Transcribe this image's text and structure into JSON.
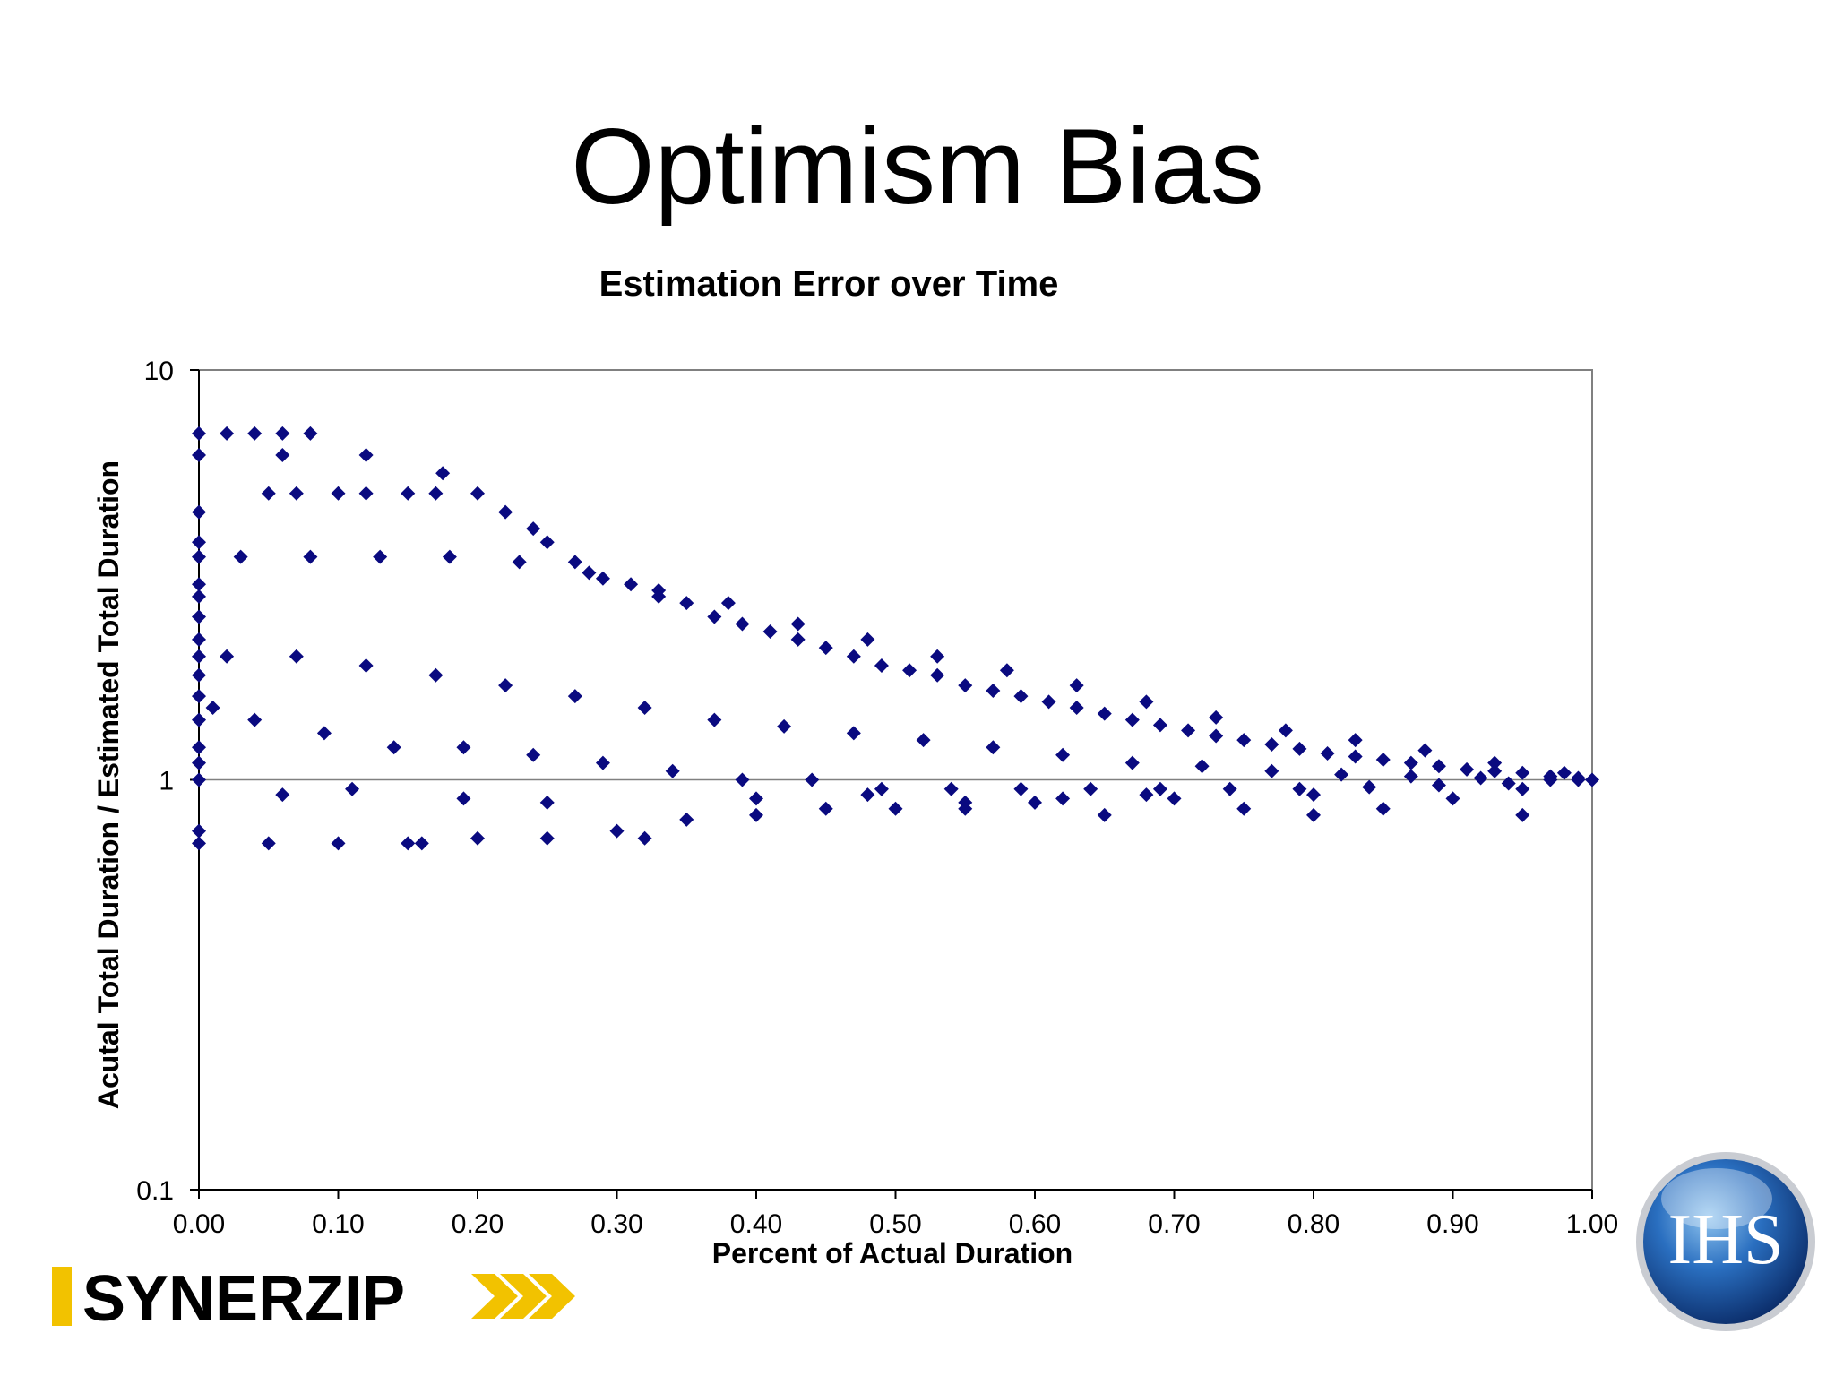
{
  "slide": {
    "title": "Optimism Bias"
  },
  "chart_data": {
    "type": "scatter",
    "title": "Estimation Error over Time",
    "xlabel": "Percent of Actual Duration",
    "ylabel": "Acutal Total Duration / Estimated Total Duration",
    "xlim": [
      0,
      1
    ],
    "ylim": [
      0.1,
      10
    ],
    "yscale": "log",
    "x_ticks": [
      "0.00",
      "0.10",
      "0.20",
      "0.30",
      "0.40",
      "0.50",
      "0.60",
      "0.70",
      "0.80",
      "0.90",
      "1.00"
    ],
    "y_ticks": [
      "0.1",
      "1",
      "10"
    ],
    "grid": "horizontal at y=1",
    "legend": "none",
    "marker": "diamond",
    "color": "#0A0A80",
    "series": [
      {
        "x": [
          0.0,
          0.0,
          0.0,
          0.0,
          0.0,
          0.0,
          0.0,
          0.0,
          0.0,
          0.0,
          0.0,
          0.0,
          0.0,
          0.0,
          0.0,
          0.0,
          0.0,
          0.0,
          0.02,
          0.04,
          0.06,
          0.08,
          0.06,
          0.12,
          0.05,
          0.07,
          0.1,
          0.12,
          0.15,
          0.17,
          0.175,
          0.2,
          0.22,
          0.24,
          0.25,
          0.27,
          0.29,
          0.31,
          0.33,
          0.35,
          0.37,
          0.39,
          0.41,
          0.43,
          0.45,
          0.47,
          0.49,
          0.51,
          0.53,
          0.55,
          0.57,
          0.59,
          0.61,
          0.63,
          0.65,
          0.67,
          0.69,
          0.71,
          0.73,
          0.75,
          0.77,
          0.79,
          0.81,
          0.83,
          0.85,
          0.87,
          0.89,
          0.91,
          0.93,
          0.95,
          0.97,
          0.99,
          1.0,
          0.05,
          0.1,
          0.15,
          0.2,
          0.25,
          0.3,
          0.35,
          0.4,
          0.45,
          0.5,
          0.55,
          0.6,
          0.65,
          0.7,
          0.75,
          0.8,
          0.85,
          0.9,
          0.95,
          0.06,
          0.11,
          0.19,
          0.16,
          0.32,
          0.25,
          0.4,
          0.48,
          0.55,
          0.62,
          0.68,
          0.8,
          0.95,
          0.03,
          0.08,
          0.13,
          0.18,
          0.23,
          0.28,
          0.33,
          0.38,
          0.43,
          0.48,
          0.53,
          0.58,
          0.63,
          0.68,
          0.73,
          0.78,
          0.83,
          0.88,
          0.93,
          0.98,
          0.02,
          0.07,
          0.12,
          0.17,
          0.22,
          0.27,
          0.32,
          0.37,
          0.42,
          0.47,
          0.52,
          0.57,
          0.62,
          0.67,
          0.72,
          0.77,
          0.82,
          0.87,
          0.92,
          0.97,
          0.01,
          0.04,
          0.09,
          0.14,
          0.19,
          0.24,
          0.29,
          0.34,
          0.39,
          0.44,
          0.49,
          0.54,
          0.59,
          0.64,
          0.69,
          0.74,
          0.79,
          0.84,
          0.89,
          0.94,
          0.99
        ],
        "y": [
          7.0,
          6.2,
          4.5,
          3.8,
          3.5,
          3.0,
          2.8,
          2.5,
          2.2,
          2.0,
          1.8,
          1.6,
          1.4,
          1.2,
          1.1,
          1.0,
          0.75,
          0.7,
          7.0,
          7.0,
          7.0,
          7.0,
          6.2,
          6.2,
          5.0,
          5.0,
          5.0,
          5.0,
          5.0,
          5.0,
          5.6,
          5.0,
          4.5,
          4.1,
          3.8,
          3.4,
          3.1,
          3.0,
          2.8,
          2.7,
          2.5,
          2.4,
          2.3,
          2.2,
          2.1,
          2.0,
          1.9,
          1.85,
          1.8,
          1.7,
          1.65,
          1.6,
          1.55,
          1.5,
          1.45,
          1.4,
          1.36,
          1.32,
          1.28,
          1.25,
          1.22,
          1.19,
          1.16,
          1.14,
          1.12,
          1.1,
          1.08,
          1.06,
          1.05,
          1.04,
          1.02,
          1.01,
          1.0,
          0.7,
          0.7,
          0.7,
          0.72,
          0.72,
          0.75,
          0.8,
          0.82,
          0.85,
          0.85,
          0.85,
          0.88,
          0.82,
          0.9,
          0.85,
          0.82,
          0.85,
          0.9,
          0.82,
          0.92,
          0.95,
          0.9,
          0.7,
          0.72,
          0.88,
          0.9,
          0.92,
          0.88,
          0.9,
          0.92,
          0.92,
          0.95,
          3.5,
          3.5,
          3.5,
          3.5,
          3.4,
          3.2,
          2.9,
          2.7,
          2.4,
          2.2,
          2.0,
          1.85,
          1.7,
          1.55,
          1.42,
          1.32,
          1.25,
          1.18,
          1.1,
          1.04,
          2.0,
          2.0,
          1.9,
          1.8,
          1.7,
          1.6,
          1.5,
          1.4,
          1.35,
          1.3,
          1.25,
          1.2,
          1.15,
          1.1,
          1.08,
          1.05,
          1.03,
          1.02,
          1.01,
          1.0,
          1.5,
          1.4,
          1.3,
          1.2,
          1.2,
          1.15,
          1.1,
          1.05,
          1.0,
          1.0,
          0.95,
          0.95,
          0.95,
          0.95,
          0.95,
          0.95,
          0.95,
          0.96,
          0.97,
          0.98,
          1.0
        ]
      }
    ]
  },
  "logos": {
    "synerzip_text": "SYNERZIP",
    "ihs_text": "IHS"
  }
}
